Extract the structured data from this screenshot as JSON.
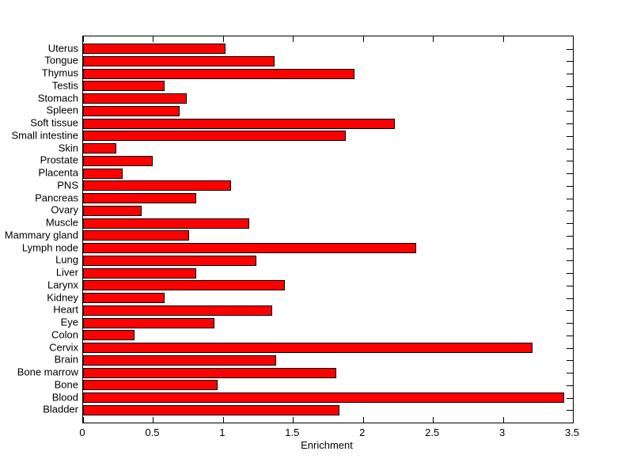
{
  "figure": {
    "background": "#ffffff",
    "xlabel": "Enrichment"
  },
  "chart_data": {
    "type": "bar",
    "orientation": "horizontal",
    "title": "",
    "xlabel": "Enrichment",
    "ylabel": "",
    "xlim": [
      0,
      3.5
    ],
    "xticks": [
      0,
      0.5,
      1,
      1.5,
      2,
      2.5,
      3,
      3.5
    ],
    "xtick_labels": [
      "0",
      "0.5",
      "1",
      "1.5",
      "2",
      "2.5",
      "3",
      "3.5"
    ],
    "grid": false,
    "legend": null,
    "bar_color": "#ff0000",
    "bar_edge_color": "#000000",
    "axis_color": "#000000",
    "categories": [
      "Uterus",
      "Tongue",
      "Thymus",
      "Testis",
      "Stomach",
      "Spleen",
      "Soft tissue",
      "Small intestine",
      "Skin",
      "Prostate",
      "Placenta",
      "PNS",
      "Pancreas",
      "Ovary",
      "Muscle",
      "Mammary gland",
      "Lymph node",
      "Lung",
      "Liver",
      "Larynx",
      "Kidney",
      "Heart",
      "Eye",
      "Colon",
      "Cervix",
      "Brain",
      "Bone marrow",
      "Bone",
      "Blood",
      "Bladder"
    ],
    "values": [
      1.02,
      1.37,
      1.94,
      0.58,
      0.74,
      0.69,
      2.23,
      1.88,
      0.24,
      0.5,
      0.28,
      1.06,
      0.81,
      0.42,
      1.19,
      0.76,
      2.38,
      1.24,
      0.81,
      1.44,
      0.58,
      1.35,
      0.94,
      0.37,
      3.21,
      1.38,
      1.81,
      0.96,
      3.44,
      1.83
    ]
  }
}
